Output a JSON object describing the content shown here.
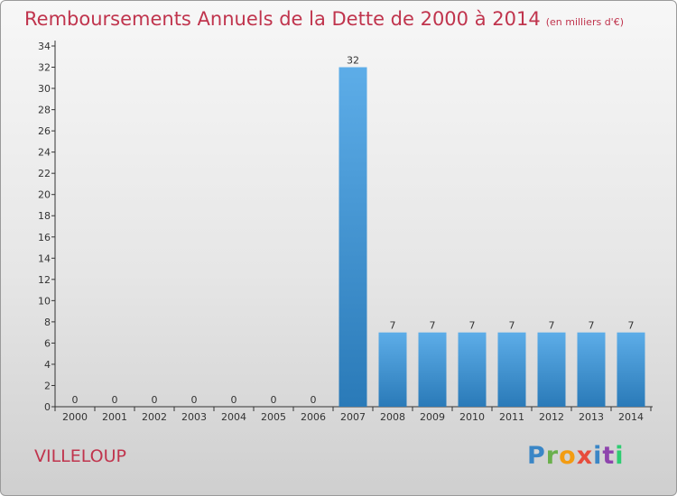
{
  "title": "Remboursements Annuels de la Dette de 2000 à 2014",
  "unit": "(en milliers d'€)",
  "commune": "VILLELOUP",
  "logo": "Proxiti",
  "colors": {
    "bar_light": "#5dade8",
    "bar_dark": "#2a7ab8",
    "title": "#c0344d"
  },
  "chart_data": {
    "type": "bar",
    "categories": [
      "2000",
      "2001",
      "2002",
      "2003",
      "2004",
      "2005",
      "2006",
      "2007",
      "2008",
      "2009",
      "2010",
      "2011",
      "2012",
      "2013",
      "2014"
    ],
    "values": [
      0,
      0,
      0,
      0,
      0,
      0,
      0,
      32,
      7,
      7,
      7,
      7,
      7,
      7,
      7
    ],
    "ylim": [
      0,
      34
    ],
    "yticks": [
      0,
      2,
      4,
      6,
      8,
      10,
      12,
      14,
      16,
      18,
      20,
      22,
      24,
      26,
      28,
      30,
      32,
      34
    ],
    "grid": false
  }
}
